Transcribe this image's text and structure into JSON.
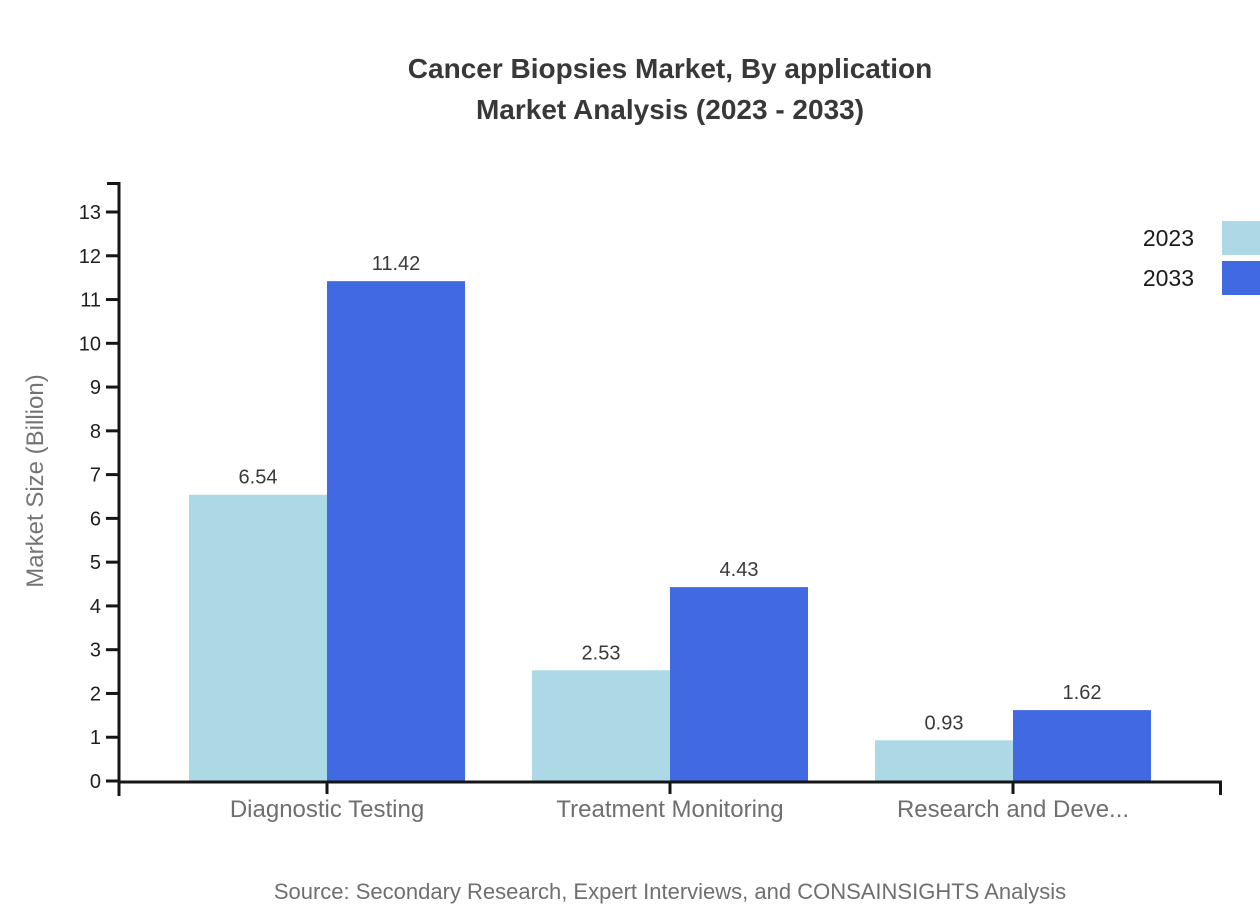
{
  "title": {
    "line1": "Cancer Biopsies Market, By application",
    "line2": "Market Analysis (2023 - 2033)"
  },
  "source": {
    "text": "Source: Secondary Research, Expert Interviews, and CONSAINSIGHTS Analysis"
  },
  "chart_data": {
    "type": "bar",
    "title": "Cancer Biopsies Market, By application Market Analysis (2023 - 2033)",
    "categories": [
      "Diagnostic Testing",
      "Treatment Monitoring",
      "Research and Deve..."
    ],
    "series": [
      {
        "name": "2023",
        "color": "#ADD8E6",
        "values": [
          6.54,
          2.53,
          0.93
        ]
      },
      {
        "name": "2033",
        "color": "#4169E1",
        "values": [
          11.42,
          4.43,
          1.62
        ]
      }
    ],
    "xlabel": "",
    "ylabel": "Market Size (Billion)",
    "ylim": [
      0,
      13
    ],
    "ytick_step": 1,
    "yticks": [
      0,
      1,
      2,
      3,
      4,
      5,
      6,
      7,
      8,
      9,
      10,
      11,
      12,
      13
    ],
    "grid": false,
    "value_labels": true,
    "legend_position": "top-right",
    "axis_color": "#161616",
    "value_label_color": "#3a3a3a",
    "ytick_label_color": "#1f1f1f",
    "category_label_color": "#6f6f6f"
  }
}
